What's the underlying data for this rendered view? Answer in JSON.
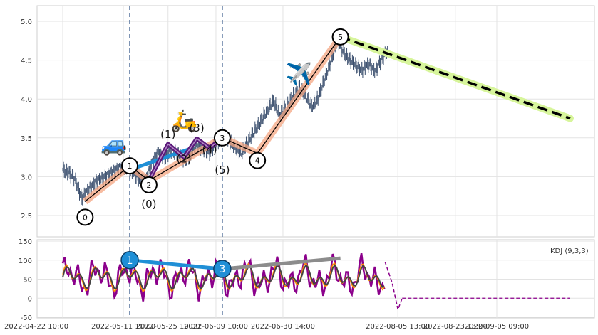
{
  "chart_data": [
    {
      "type": "line",
      "panel": "price",
      "ylim": [
        2.2,
        5.2
      ],
      "yticks": [
        "2.5",
        "3.0",
        "3.5",
        "4.0",
        "4.5",
        "5.0"
      ],
      "grid": true,
      "colors": {
        "candles": "#3b4f6e",
        "wave_band": "#f4a582",
        "wave_line": "#000000",
        "subwave": "#5b1a7a",
        "abc_line": "#1f8fd6",
        "forecast_dashed": "#000000",
        "forecast_band": "#d7f59b",
        "vline": "#4a6a96"
      },
      "price_series": [
        {
          "d": "2022-04-22",
          "v": 3.09
        },
        {
          "d": "2022-04-24",
          "v": 3.05
        },
        {
          "d": "2022-04-26",
          "v": 2.95
        },
        {
          "d": "2022-04-28",
          "v": 2.72
        },
        {
          "d": "2022-04-30",
          "v": 2.83
        },
        {
          "d": "2022-05-02",
          "v": 2.93
        },
        {
          "d": "2022-05-04",
          "v": 2.97
        },
        {
          "d": "2022-05-06",
          "v": 3.02
        },
        {
          "d": "2022-05-08",
          "v": 3.07
        },
        {
          "d": "2022-05-10",
          "v": 3.12
        },
        {
          "d": "2022-05-12",
          "v": 3.14
        },
        {
          "d": "2022-05-14",
          "v": 3.04
        },
        {
          "d": "2022-05-16",
          "v": 2.98
        },
        {
          "d": "2022-05-18",
          "v": 2.96
        },
        {
          "d": "2022-05-20",
          "v": 3.18
        },
        {
          "d": "2022-05-22",
          "v": 3.32
        },
        {
          "d": "2022-05-24",
          "v": 3.25
        },
        {
          "d": "2022-05-26",
          "v": 3.35
        },
        {
          "d": "2022-05-28",
          "v": 3.3
        },
        {
          "d": "2022-05-30",
          "v": 3.22
        },
        {
          "d": "2022-06-01",
          "v": 3.28
        },
        {
          "d": "2022-06-03",
          "v": 3.4
        },
        {
          "d": "2022-06-05",
          "v": 3.36
        },
        {
          "d": "2022-06-07",
          "v": 3.31
        },
        {
          "d": "2022-06-09",
          "v": 3.42
        },
        {
          "d": "2022-06-11",
          "v": 3.5
        },
        {
          "d": "2022-06-13",
          "v": 3.47
        },
        {
          "d": "2022-06-15",
          "v": 3.38
        },
        {
          "d": "2022-06-17",
          "v": 3.3
        },
        {
          "d": "2022-06-19",
          "v": 3.44
        },
        {
          "d": "2022-06-21",
          "v": 3.58
        },
        {
          "d": "2022-06-23",
          "v": 3.7
        },
        {
          "d": "2022-06-25",
          "v": 3.85
        },
        {
          "d": "2022-06-27",
          "v": 3.96
        },
        {
          "d": "2022-06-29",
          "v": 3.8
        },
        {
          "d": "2022-07-01",
          "v": 3.88
        },
        {
          "d": "2022-07-03",
          "v": 4.02
        },
        {
          "d": "2022-07-05",
          "v": 4.14
        },
        {
          "d": "2022-07-07",
          "v": 4.05
        },
        {
          "d": "2022-07-09",
          "v": 3.9
        },
        {
          "d": "2022-07-11",
          "v": 4.0
        },
        {
          "d": "2022-07-13",
          "v": 4.25
        },
        {
          "d": "2022-07-15",
          "v": 4.48
        },
        {
          "d": "2022-07-17",
          "v": 4.76
        },
        {
          "d": "2022-07-19",
          "v": 4.6
        },
        {
          "d": "2022-07-21",
          "v": 4.5
        },
        {
          "d": "2022-07-23",
          "v": 4.42
        },
        {
          "d": "2022-07-25",
          "v": 4.38
        },
        {
          "d": "2022-07-27",
          "v": 4.45
        },
        {
          "d": "2022-07-29",
          "v": 4.36
        },
        {
          "d": "2022-07-31",
          "v": 4.52
        },
        {
          "d": "2022-08-02",
          "v": 4.64
        }
      ],
      "wave_points": [
        {
          "label": "0",
          "d": "2022-04-29",
          "v": 2.68
        },
        {
          "label": "1",
          "d": "2022-05-13",
          "v": 3.14
        },
        {
          "label": "2",
          "d": "2022-05-19",
          "v": 2.95
        },
        {
          "label": "3",
          "d": "2022-06-11",
          "v": 3.5
        },
        {
          "label": "4",
          "d": "2022-06-22",
          "v": 3.3
        },
        {
          "label": "5",
          "d": "2022-07-18",
          "v": 4.8
        }
      ],
      "subwave_labels": [
        {
          "label": "(0)",
          "d": "2022-05-19",
          "v": 2.6
        },
        {
          "label": "(1)",
          "d": "2022-05-25",
          "v": 3.5
        },
        {
          "label": "(2)",
          "d": "2022-05-30",
          "v": 3.18
        },
        {
          "label": "(3)",
          "d": "2022-06-03",
          "v": 3.58
        },
        {
          "label": "(4)",
          "d": "2022-06-07",
          "v": 3.3
        },
        {
          "label": "(5)",
          "d": "2022-06-11",
          "v": 3.04
        }
      ],
      "subwave_path": [
        {
          "d": "2022-05-19",
          "v": 2.95
        },
        {
          "d": "2022-05-25",
          "v": 3.42
        },
        {
          "d": "2022-05-30",
          "v": 3.25
        },
        {
          "d": "2022-06-03",
          "v": 3.49
        },
        {
          "d": "2022-06-07",
          "v": 3.37
        },
        {
          "d": "2022-06-11",
          "v": 3.5
        }
      ],
      "abc_path": [
        {
          "d": "2022-05-13",
          "v": 3.09
        },
        {
          "d": "2022-06-01",
          "v": 3.36
        }
      ],
      "forecast": [
        {
          "d": "2022-07-18",
          "v": 4.8
        },
        {
          "d": "2022-09-28",
          "v": 3.75
        }
      ],
      "event_lines": [
        "2022-05-13",
        "2022-06-11"
      ],
      "emojis": [
        {
          "glyph": "🚙",
          "d": "2022-05-08",
          "v": 3.33
        },
        {
          "glyph": "🛵",
          "d": "2022-05-30",
          "v": 3.63
        },
        {
          "glyph": "✈️",
          "d": "2022-07-05",
          "v": 4.23
        }
      ]
    },
    {
      "type": "line",
      "panel": "kdj",
      "indicator_label": "KDJ (9,3,3)",
      "ylim": [
        -50,
        150
      ],
      "yticks": [
        "150",
        "100",
        "50",
        "0",
        "-50"
      ],
      "xticks": [
        "2022-04-22 10:00",
        "2022-05-11 10:00",
        "2022-05-25 10:00",
        "2022-06-09 10:00",
        "2022-06-30 14:00",
        "2022-08-05 13:00",
        "2022-08-23 13:00",
        "2022-09-05 09:00"
      ],
      "grid": true,
      "colors": {
        "J": "#8b008b",
        "K": "#ff8c00",
        "D": "#444444",
        "connector_blue": "#1f8fd6",
        "connector_gray": "#8c8c8c"
      },
      "markers": [
        {
          "label": "1",
          "d": "2022-05-13",
          "v": 100
        },
        {
          "label": "3",
          "d": "2022-06-11",
          "v": 77
        }
      ],
      "blue_connector": [
        {
          "d": "2022-05-13",
          "v": 100
        },
        {
          "d": "2022-06-11",
          "v": 77
        }
      ],
      "gray_connector": [
        {
          "d": "2022-06-11",
          "v": 77
        },
        {
          "d": "2022-07-18",
          "v": 105
        }
      ],
      "kdj_end": "2022-08-01",
      "zero_line_end": "2022-09-28"
    }
  ]
}
